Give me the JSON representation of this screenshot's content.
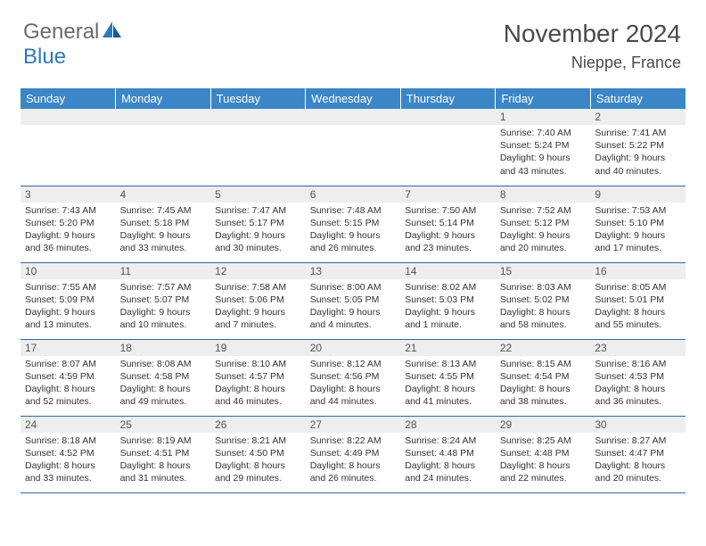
{
  "logo": {
    "word1": "General",
    "word2": "Blue"
  },
  "title": "November 2024",
  "location": "Nieppe, France",
  "colors": {
    "header_bg": "#3b86c6",
    "header_text": "#ffffff",
    "row_divider": "#2f6aa0",
    "daynum_bg": "#eeeeee",
    "body_text": "#333333",
    "logo_gray": "#6a6a6a",
    "logo_blue": "#2f77bb"
  },
  "weekdays": [
    "Sunday",
    "Monday",
    "Tuesday",
    "Wednesday",
    "Thursday",
    "Friday",
    "Saturday"
  ],
  "weeks": [
    [
      null,
      null,
      null,
      null,
      null,
      {
        "n": "1",
        "sr": "7:40 AM",
        "ss": "5:24 PM",
        "dl": "9 hours and 43 minutes."
      },
      {
        "n": "2",
        "sr": "7:41 AM",
        "ss": "5:22 PM",
        "dl": "9 hours and 40 minutes."
      }
    ],
    [
      {
        "n": "3",
        "sr": "7:43 AM",
        "ss": "5:20 PM",
        "dl": "9 hours and 36 minutes."
      },
      {
        "n": "4",
        "sr": "7:45 AM",
        "ss": "5:18 PM",
        "dl": "9 hours and 33 minutes."
      },
      {
        "n": "5",
        "sr": "7:47 AM",
        "ss": "5:17 PM",
        "dl": "9 hours and 30 minutes."
      },
      {
        "n": "6",
        "sr": "7:48 AM",
        "ss": "5:15 PM",
        "dl": "9 hours and 26 minutes."
      },
      {
        "n": "7",
        "sr": "7:50 AM",
        "ss": "5:14 PM",
        "dl": "9 hours and 23 minutes."
      },
      {
        "n": "8",
        "sr": "7:52 AM",
        "ss": "5:12 PM",
        "dl": "9 hours and 20 minutes."
      },
      {
        "n": "9",
        "sr": "7:53 AM",
        "ss": "5:10 PM",
        "dl": "9 hours and 17 minutes."
      }
    ],
    [
      {
        "n": "10",
        "sr": "7:55 AM",
        "ss": "5:09 PM",
        "dl": "9 hours and 13 minutes."
      },
      {
        "n": "11",
        "sr": "7:57 AM",
        "ss": "5:07 PM",
        "dl": "9 hours and 10 minutes."
      },
      {
        "n": "12",
        "sr": "7:58 AM",
        "ss": "5:06 PM",
        "dl": "9 hours and 7 minutes."
      },
      {
        "n": "13",
        "sr": "8:00 AM",
        "ss": "5:05 PM",
        "dl": "9 hours and 4 minutes."
      },
      {
        "n": "14",
        "sr": "8:02 AM",
        "ss": "5:03 PM",
        "dl": "9 hours and 1 minute."
      },
      {
        "n": "15",
        "sr": "8:03 AM",
        "ss": "5:02 PM",
        "dl": "8 hours and 58 minutes."
      },
      {
        "n": "16",
        "sr": "8:05 AM",
        "ss": "5:01 PM",
        "dl": "8 hours and 55 minutes."
      }
    ],
    [
      {
        "n": "17",
        "sr": "8:07 AM",
        "ss": "4:59 PM",
        "dl": "8 hours and 52 minutes."
      },
      {
        "n": "18",
        "sr": "8:08 AM",
        "ss": "4:58 PM",
        "dl": "8 hours and 49 minutes."
      },
      {
        "n": "19",
        "sr": "8:10 AM",
        "ss": "4:57 PM",
        "dl": "8 hours and 46 minutes."
      },
      {
        "n": "20",
        "sr": "8:12 AM",
        "ss": "4:56 PM",
        "dl": "8 hours and 44 minutes."
      },
      {
        "n": "21",
        "sr": "8:13 AM",
        "ss": "4:55 PM",
        "dl": "8 hours and 41 minutes."
      },
      {
        "n": "22",
        "sr": "8:15 AM",
        "ss": "4:54 PM",
        "dl": "8 hours and 38 minutes."
      },
      {
        "n": "23",
        "sr": "8:16 AM",
        "ss": "4:53 PM",
        "dl": "8 hours and 36 minutes."
      }
    ],
    [
      {
        "n": "24",
        "sr": "8:18 AM",
        "ss": "4:52 PM",
        "dl": "8 hours and 33 minutes."
      },
      {
        "n": "25",
        "sr": "8:19 AM",
        "ss": "4:51 PM",
        "dl": "8 hours and 31 minutes."
      },
      {
        "n": "26",
        "sr": "8:21 AM",
        "ss": "4:50 PM",
        "dl": "8 hours and 29 minutes."
      },
      {
        "n": "27",
        "sr": "8:22 AM",
        "ss": "4:49 PM",
        "dl": "8 hours and 26 minutes."
      },
      {
        "n": "28",
        "sr": "8:24 AM",
        "ss": "4:48 PM",
        "dl": "8 hours and 24 minutes."
      },
      {
        "n": "29",
        "sr": "8:25 AM",
        "ss": "4:48 PM",
        "dl": "8 hours and 22 minutes."
      },
      {
        "n": "30",
        "sr": "8:27 AM",
        "ss": "4:47 PM",
        "dl": "8 hours and 20 minutes."
      }
    ]
  ],
  "labels": {
    "sunrise": "Sunrise: ",
    "sunset": "Sunset: ",
    "daylight": "Daylight: "
  }
}
